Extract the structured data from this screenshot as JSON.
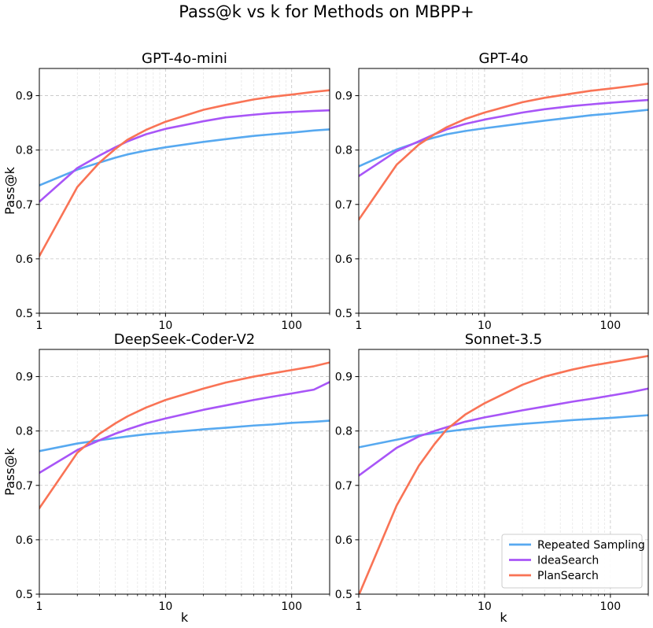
{
  "chart_data": {
    "type": "line",
    "title": "Pass@k vs k for Methods on MBPP+",
    "xscale": "log",
    "xlim": [
      1,
      200
    ],
    "ylim": [
      0.5,
      0.95
    ],
    "xticks": [
      1,
      10,
      100
    ],
    "xtick_labels": [
      "1",
      "10",
      "100"
    ],
    "yticks": [
      0.5,
      0.6,
      0.7,
      0.8,
      0.9
    ],
    "ytick_labels": [
      "0.5",
      "0.6",
      "0.7",
      "0.8",
      "0.9"
    ],
    "xlabel": "k",
    "ylabel": "Pass@k",
    "grid": true,
    "legend": {
      "placement": "lower-right",
      "subplot": 3,
      "entries": [
        {
          "label": "Repeated Sampling",
          "color": "#57a9f0"
        },
        {
          "label": "IdeaSearch",
          "color": "#a855f7"
        },
        {
          "label": "PlanSearch",
          "color": "#f97355"
        }
      ]
    },
    "x": [
      1,
      2,
      3,
      4,
      5,
      7,
      10,
      20,
      30,
      50,
      70,
      100,
      150,
      200
    ],
    "subplots": [
      {
        "title": "GPT-4o-mini",
        "series": [
          {
            "name": "Repeated Sampling",
            "values": [
              0.735,
              0.764,
              0.777,
              0.786,
              0.792,
              0.799,
              0.805,
              0.815,
              0.82,
              0.826,
              0.829,
              0.832,
              0.836,
              0.838
            ]
          },
          {
            "name": "IdeaSearch",
            "values": [
              0.705,
              0.767,
              0.79,
              0.805,
              0.816,
              0.829,
              0.839,
              0.853,
              0.86,
              0.865,
              0.868,
              0.87,
              0.872,
              0.873
            ]
          },
          {
            "name": "PlanSearch",
            "values": [
              0.605,
              0.732,
              0.777,
              0.802,
              0.819,
              0.837,
              0.852,
              0.874,
              0.883,
              0.893,
              0.898,
              0.902,
              0.907,
              0.91
            ]
          }
        ]
      },
      {
        "title": "GPT-4o",
        "series": [
          {
            "name": "Repeated Sampling",
            "values": [
              0.77,
              0.801,
              0.815,
              0.823,
              0.829,
              0.835,
              0.84,
              0.849,
              0.854,
              0.86,
              0.864,
              0.867,
              0.871,
              0.874
            ]
          },
          {
            "name": "IdeaSearch",
            "values": [
              0.752,
              0.798,
              0.816,
              0.829,
              0.838,
              0.848,
              0.856,
              0.869,
              0.875,
              0.881,
              0.884,
              0.887,
              0.89,
              0.892
            ]
          },
          {
            "name": "PlanSearch",
            "values": [
              0.672,
              0.773,
              0.81,
              0.829,
              0.842,
              0.857,
              0.869,
              0.888,
              0.896,
              0.904,
              0.909,
              0.913,
              0.918,
              0.922
            ]
          }
        ]
      },
      {
        "title": "DeepSeek-Coder-V2",
        "series": [
          {
            "name": "Repeated Sampling",
            "values": [
              0.763,
              0.777,
              0.783,
              0.787,
              0.79,
              0.794,
              0.797,
              0.803,
              0.806,
              0.81,
              0.812,
              0.815,
              0.817,
              0.819
            ]
          },
          {
            "name": "IdeaSearch",
            "values": [
              0.723,
              0.765,
              0.783,
              0.795,
              0.803,
              0.814,
              0.823,
              0.839,
              0.847,
              0.857,
              0.863,
              0.869,
              0.876,
              0.89
            ]
          },
          {
            "name": "PlanSearch",
            "values": [
              0.658,
              0.76,
              0.795,
              0.814,
              0.827,
              0.843,
              0.857,
              0.878,
              0.889,
              0.9,
              0.906,
              0.912,
              0.919,
              0.926
            ]
          }
        ]
      },
      {
        "title": "Sonnet-3.5",
        "series": [
          {
            "name": "Repeated Sampling",
            "values": [
              0.77,
              0.784,
              0.792,
              0.796,
              0.799,
              0.803,
              0.807,
              0.813,
              0.816,
              0.82,
              0.822,
              0.824,
              0.827,
              0.829
            ]
          },
          {
            "name": "IdeaSearch",
            "values": [
              0.718,
              0.769,
              0.79,
              0.8,
              0.807,
              0.817,
              0.825,
              0.838,
              0.845,
              0.854,
              0.859,
              0.865,
              0.872,
              0.878
            ]
          },
          {
            "name": "PlanSearch",
            "values": [
              0.498,
              0.663,
              0.736,
              0.776,
              0.803,
              0.83,
              0.851,
              0.885,
              0.9,
              0.913,
              0.92,
              0.926,
              0.933,
              0.938
            ]
          }
        ]
      }
    ]
  }
}
